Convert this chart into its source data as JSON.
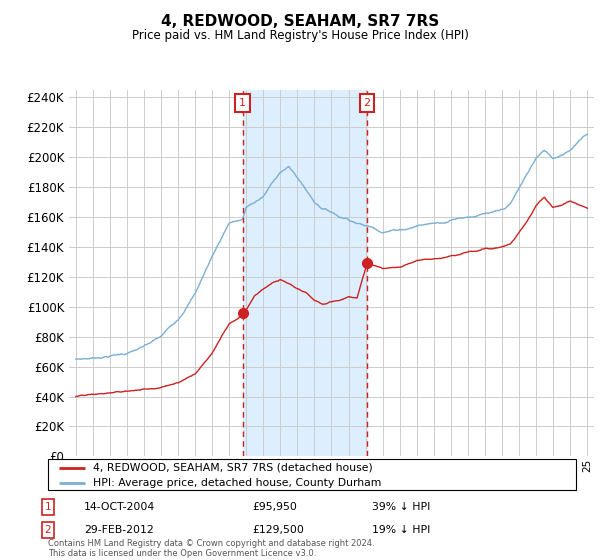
{
  "title": "4, REDWOOD, SEAHAM, SR7 7RS",
  "subtitle": "Price paid vs. HM Land Registry's House Price Index (HPI)",
  "legend1": "4, REDWOOD, SEAHAM, SR7 7RS (detached house)",
  "legend2": "HPI: Average price, detached house, County Durham",
  "sale1_date": "14-OCT-2004",
  "sale1_price": "£95,950",
  "sale1_hpi": "39% ↓ HPI",
  "sale2_date": "29-FEB-2012",
  "sale2_price": "£129,500",
  "sale2_hpi": "19% ↓ HPI",
  "footer": "Contains HM Land Registry data © Crown copyright and database right 2024.\nThis data is licensed under the Open Government Licence v3.0.",
  "hpi_color": "#7bafd4",
  "price_color": "#cc2222",
  "sale_vline_color": "#cc2222",
  "span_color": "#ddeeff",
  "annotation_box_color": "#cc2222",
  "grid_color": "#cccccc",
  "ylim": [
    0,
    240000
  ],
  "yticks": [
    0,
    20000,
    40000,
    60000,
    80000,
    100000,
    120000,
    140000,
    160000,
    180000,
    200000,
    220000,
    240000
  ],
  "sale1_year": 2004.79,
  "sale2_year": 2012.08,
  "sale1_price_val": 95950,
  "sale2_price_val": 129500,
  "hpi_keypoints_x": [
    1995,
    1996,
    1997,
    1998,
    1999,
    2000,
    2001,
    2002,
    2003,
    2004,
    2004.79,
    2005,
    2006,
    2007,
    2007.5,
    2008,
    2008.5,
    2009,
    2009.5,
    2010,
    2010.5,
    2011,
    2011.5,
    2012,
    2012.5,
    2013,
    2013.5,
    2014,
    2014.5,
    2015,
    2015.5,
    2016,
    2016.5,
    2017,
    2017.5,
    2018,
    2018.5,
    2019,
    2019.5,
    2020,
    2020.5,
    2021,
    2021.5,
    2022,
    2022.5,
    2023,
    2023.5,
    2024,
    2024.5,
    2025
  ],
  "hpi_keypoints_y": [
    65000,
    66000,
    68000,
    70000,
    74000,
    80000,
    92000,
    110000,
    135000,
    158000,
    160000,
    168000,
    175000,
    192000,
    195000,
    188000,
    180000,
    172000,
    168000,
    166000,
    163000,
    162000,
    160000,
    158000,
    157000,
    155000,
    156000,
    157000,
    158000,
    160000,
    161000,
    162000,
    163000,
    165000,
    167000,
    168000,
    169000,
    170000,
    170000,
    171000,
    175000,
    185000,
    195000,
    205000,
    210000,
    205000,
    208000,
    212000,
    218000,
    222000
  ],
  "price_keypoints_x": [
    1995,
    1996,
    1997,
    1998,
    1999,
    2000,
    2001,
    2002,
    2003,
    2004,
    2004.79,
    2005.5,
    2006.5,
    2007,
    2007.5,
    2008,
    2008.5,
    2009,
    2009.5,
    2010,
    2010.5,
    2011,
    2011.5,
    2012.08,
    2012.5,
    2013,
    2013.5,
    2014,
    2014.5,
    2015,
    2015.5,
    2016,
    2016.5,
    2017,
    2017.5,
    2018,
    2018.5,
    2019,
    2019.5,
    2020,
    2020.5,
    2021,
    2021.5,
    2022,
    2022.5,
    2023,
    2023.5,
    2024,
    2024.5,
    2025
  ],
  "price_keypoints_y": [
    40000,
    40500,
    41500,
    42500,
    44000,
    46000,
    50000,
    56000,
    70000,
    90000,
    95950,
    110000,
    118000,
    120000,
    117000,
    113000,
    110000,
    105000,
    102000,
    104000,
    105000,
    108000,
    107000,
    129500,
    128000,
    126000,
    127000,
    128000,
    130000,
    132000,
    133000,
    134000,
    135000,
    137000,
    138000,
    140000,
    141000,
    142000,
    142000,
    143000,
    145000,
    152000,
    160000,
    170000,
    175000,
    168000,
    170000,
    172000,
    170000,
    168000
  ]
}
